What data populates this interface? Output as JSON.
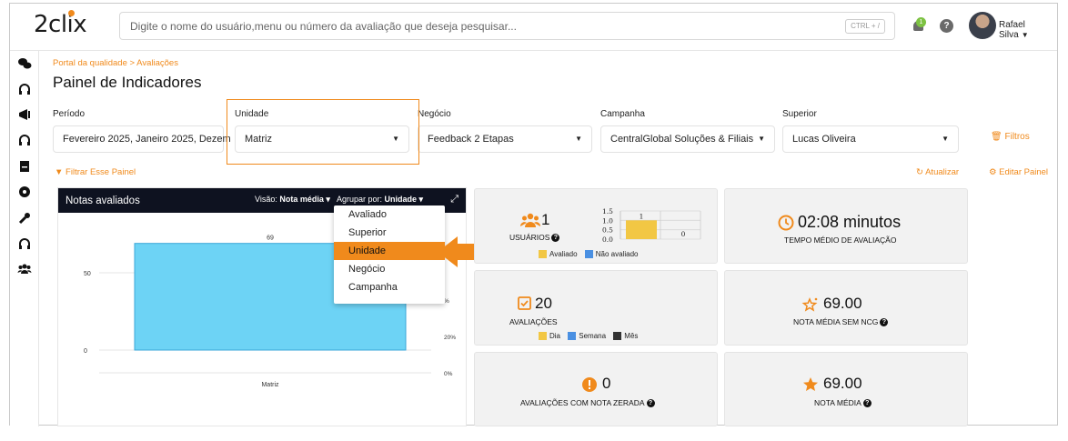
{
  "brand": {
    "logo_text": "2clix",
    "accent": "#f08a1c",
    "dark": "#0e1220"
  },
  "search": {
    "placeholder": "Digite o nome do usuário,menu ou número da avaliação que deseja pesquisar...",
    "shortcut": "CTRL + /"
  },
  "header": {
    "notification_count": "1",
    "help_label": "?",
    "user_name": "Rafael Silva"
  },
  "sidebar": {
    "icons": [
      "chat-icon",
      "headset-icon",
      "megaphone-icon",
      "headset-icon",
      "document-icon",
      "dashboard-icon",
      "wrench-icon",
      "headset-icon",
      "team-icon"
    ]
  },
  "page": {
    "breadcrumb": "Portal da qualidade > Avaliações",
    "title": "Painel de Indicadores"
  },
  "filters": [
    {
      "label": "Período",
      "value": "Fevereiro 2025, Janeiro 2025, Dezem"
    },
    {
      "label": "Unidade",
      "value": "Matriz"
    },
    {
      "label": "Negócio",
      "value": "Feedback 2 Etapas"
    },
    {
      "label": "Campanha",
      "value": "CentralGlobal Soluções & Filiais"
    },
    {
      "label": "Superior",
      "value": "Lucas Oliveira"
    }
  ],
  "actions": {
    "filtros": "Filtros",
    "filtrar_painel": "Filtrar Esse Painel",
    "atualizar": "Atualizar",
    "editar_painel": "Editar Painel"
  },
  "chart_panel": {
    "title": "Notas avaliados",
    "visao_label": "Visão:",
    "visao_value": "Nota média",
    "agrupar_label": "Agrupar por:",
    "agrupar_value": "Unidade",
    "dropdown_options": [
      "Avaliado",
      "Superior",
      "Unidade",
      "Negócio",
      "Campanha"
    ],
    "dropdown_selected": "Unidade"
  },
  "chart_data": [
    {
      "type": "bar",
      "title": "Notas avaliados",
      "categories": [
        "Matriz"
      ],
      "values": [
        69
      ],
      "data_labels": [
        "69"
      ],
      "y_ticks": [
        "0",
        "50"
      ],
      "y_right_ticks": [
        "0%",
        "20%",
        "%"
      ],
      "ylim": [
        0,
        80
      ],
      "color": "#6dd3f5",
      "grid": true
    },
    {
      "type": "bar",
      "categories": [
        "Avaliado",
        "Não avaliado"
      ],
      "values": [
        1,
        0
      ],
      "data_labels": [
        "1",
        "0"
      ],
      "y_ticks": [
        "0.0",
        "0.5",
        "1.0",
        "1.5"
      ],
      "ylim": [
        0,
        1.5
      ],
      "legend": [
        "Avaliado",
        "Não avaliado"
      ],
      "colors": [
        "#f2c744",
        "#4a90e2"
      ],
      "grid": true
    }
  ],
  "stats": {
    "usuarios": {
      "value": "1",
      "label": "USUÁRIOS",
      "legend": [
        "Avaliado",
        "Não avaliado"
      ]
    },
    "tempo": {
      "value": "02:08  minutos",
      "label": "TEMPO MÉDIO DE AVALIAÇÃO"
    },
    "avaliacoes": {
      "value": "20",
      "label": "AVALIAÇÕES",
      "legend": [
        "Dia",
        "Semana",
        "Mês"
      ]
    },
    "nota_sem_ncg": {
      "value": "69.00",
      "label": "NOTA MÉDIA SEM NCG"
    },
    "zerada": {
      "value": "0",
      "label": "AVALIAÇÕES COM NOTA ZERADA"
    },
    "nota_media": {
      "value": "69.00",
      "label": "NOTA MÉDIA"
    }
  },
  "colors": {
    "legend_yellow": "#f2c744",
    "legend_blue": "#4a90e2",
    "legend_dark": "#333333"
  }
}
